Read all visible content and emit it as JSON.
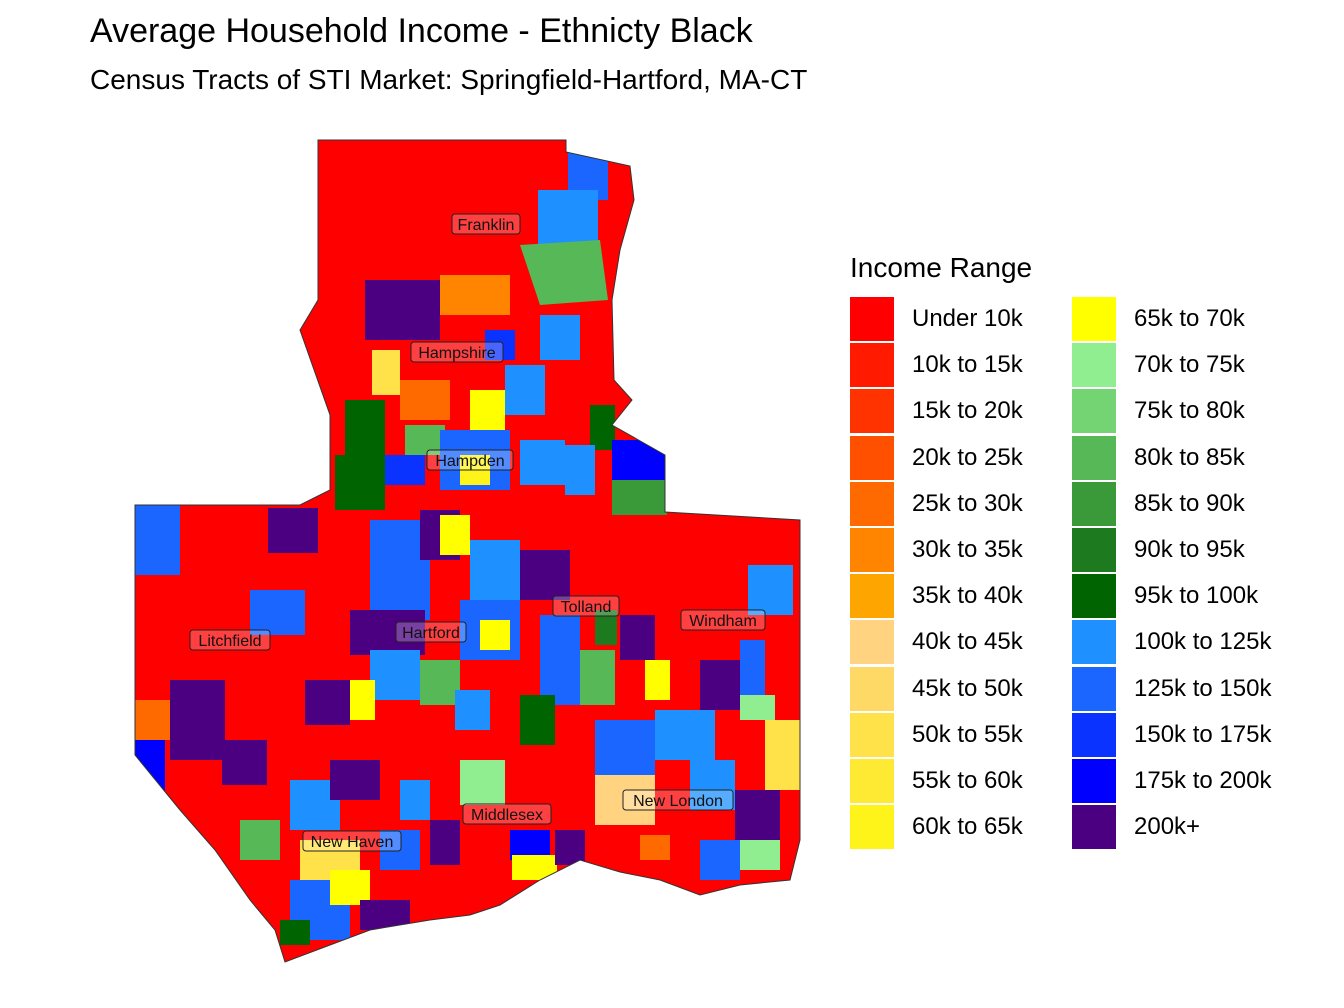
{
  "title": "Average Household Income - Ethnicty Black",
  "subtitle": "Census Tracts of STI Market: Springfield-Hartford, MA-CT",
  "legend": {
    "title": "Income Range",
    "items": [
      {
        "label": "Under 10k",
        "color": "#ff0000"
      },
      {
        "label": "10k to 15k",
        "color": "#ff1a00"
      },
      {
        "label": "15k to 20k",
        "color": "#ff3300"
      },
      {
        "label": "20k to 25k",
        "color": "#ff5000"
      },
      {
        "label": "25k to 30k",
        "color": "#ff6a00"
      },
      {
        "label": "30k to 35k",
        "color": "#ff8500"
      },
      {
        "label": "35k to 40k",
        "color": "#ffa500"
      },
      {
        "label": "40k to 45k",
        "color": "#ffd37f"
      },
      {
        "label": "45k to 50k",
        "color": "#ffd966"
      },
      {
        "label": "50k to 55k",
        "color": "#ffe24a"
      },
      {
        "label": "55k to 60k",
        "color": "#ffea33"
      },
      {
        "label": "60k to 65k",
        "color": "#fff41a"
      },
      {
        "label": "65k to 70k",
        "color": "#ffff00"
      },
      {
        "label": "70k to 75k",
        "color": "#90ee90"
      },
      {
        "label": "75k to 80k",
        "color": "#74d474"
      },
      {
        "label": "80k to 85k",
        "color": "#56b856"
      },
      {
        "label": "85k to 90k",
        "color": "#3a9a3a"
      },
      {
        "label": "90k to 95k",
        "color": "#1e7a1e"
      },
      {
        "label": "95k to 100k",
        "color": "#006400"
      },
      {
        "label": "100k to 125k",
        "color": "#1e90ff"
      },
      {
        "label": "125k to 150k",
        "color": "#1a66ff"
      },
      {
        "label": "150k to 175k",
        "color": "#0a33ff"
      },
      {
        "label": "175k to 200k",
        "color": "#0000ff"
      },
      {
        "label": "200k+",
        "color": "#4b0082"
      }
    ]
  },
  "counties": [
    "Franklin",
    "Hampshire",
    "Hampden",
    "Litchfield",
    "Hartford",
    "Tolland",
    "Windham",
    "New London",
    "Middlesex",
    "New Haven"
  ]
}
